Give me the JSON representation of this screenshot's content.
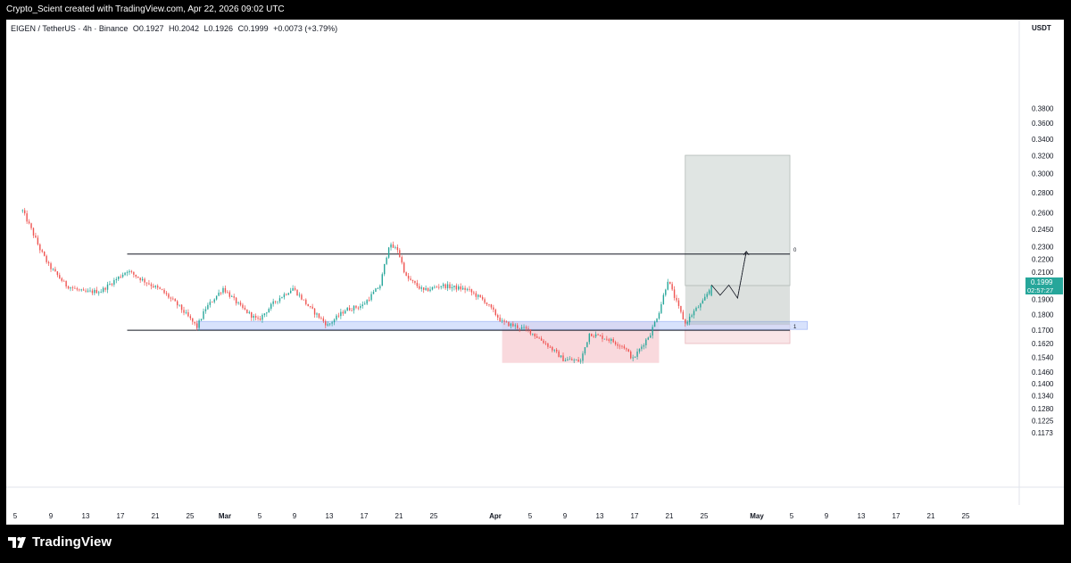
{
  "header": {
    "caption": "Crypto_Scient created with TradingView.com, Apr 22, 2026 09:02 UTC"
  },
  "legend": {
    "symbol": "EIGEN / TetherUS · 4h · Binance",
    "open": "O0.1927",
    "high": "H0.2042",
    "low": "L0.1926",
    "close": "C0.1999",
    "change": "+0.0073 (+3.79%)"
  },
  "price_axis": {
    "currency": "USDT",
    "ticks": [
      "0.3800",
      "0.3600",
      "0.3400",
      "0.3200",
      "0.3000",
      "0.2800",
      "0.2600",
      "0.2450",
      "0.2300",
      "0.2200",
      "0.2100",
      "0.1999",
      "0.1900",
      "0.1800",
      "0.1700",
      "0.1620",
      "0.1540",
      "0.1460",
      "0.1400",
      "0.1340",
      "0.1280",
      "0.1225",
      "0.1173"
    ],
    "ticks_shown": [
      "0.3800",
      "0.3600",
      "0.3400",
      "0.3200",
      "0.3000",
      "0.2800",
      "0.2600",
      "0.2450",
      "0.2300",
      "0.2200",
      "0.2100",
      "0.1900",
      "0.1800",
      "0.1700",
      "0.1620",
      "0.1540",
      "0.1460",
      "0.1400",
      "0.1340",
      "0.1280",
      "0.1225",
      "0.1173"
    ],
    "last_price_label": "0.1999",
    "countdown_label": "02:57:27",
    "last_price_color": "#26a69a"
  },
  "time_axis": {
    "labels": [
      {
        "text": "5",
        "month": false
      },
      {
        "text": "9",
        "month": false
      },
      {
        "text": "13",
        "month": false
      },
      {
        "text": "17",
        "month": false
      },
      {
        "text": "21",
        "month": false
      },
      {
        "text": "25",
        "month": false
      },
      {
        "text": "Mar",
        "month": true
      },
      {
        "text": "5",
        "month": false
      },
      {
        "text": "9",
        "month": false
      },
      {
        "text": "13",
        "month": false
      },
      {
        "text": "17",
        "month": false
      },
      {
        "text": "21",
        "month": false
      },
      {
        "text": "25",
        "month": false
      },
      {
        "text": "Apr",
        "month": true
      },
      {
        "text": "5",
        "month": false
      },
      {
        "text": "9",
        "month": false
      },
      {
        "text": "13",
        "month": false
      },
      {
        "text": "17",
        "month": false
      },
      {
        "text": "21",
        "month": false
      },
      {
        "text": "25",
        "month": false
      },
      {
        "text": "May",
        "month": true
      },
      {
        "text": "5",
        "month": false
      },
      {
        "text": "9",
        "month": false
      },
      {
        "text": "13",
        "month": false
      },
      {
        "text": "17",
        "month": false
      },
      {
        "text": "21",
        "month": false
      },
      {
        "text": "25",
        "month": false
      }
    ]
  },
  "chart_data": {
    "type": "candlestick",
    "symbol": "EIGEN / TetherUS",
    "interval": "4h",
    "exchange": "Binance",
    "y_scale": "log",
    "ylim": [
      0.1173,
      0.39
    ],
    "colors": {
      "up": "#26a69a",
      "down": "#ef5350"
    },
    "price_path": [
      [
        "2026-02-02",
        0.262
      ],
      [
        "2026-02-03",
        0.245
      ],
      [
        "2026-02-04",
        0.228
      ],
      [
        "2026-02-05",
        0.215
      ],
      [
        "2026-02-07",
        0.2
      ],
      [
        "2026-02-09",
        0.195
      ],
      [
        "2026-02-11",
        0.196
      ],
      [
        "2026-02-14",
        0.211
      ],
      [
        "2026-02-16",
        0.203
      ],
      [
        "2026-02-18",
        0.196
      ],
      [
        "2026-02-20",
        0.185
      ],
      [
        "2026-02-22",
        0.172
      ],
      [
        "2026-02-23",
        0.184
      ],
      [
        "2026-02-25",
        0.198
      ],
      [
        "2026-02-27",
        0.185
      ],
      [
        "2026-03-01",
        0.176
      ],
      [
        "2026-03-03",
        0.189
      ],
      [
        "2026-03-05",
        0.198
      ],
      [
        "2026-03-07",
        0.184
      ],
      [
        "2026-03-09",
        0.173
      ],
      [
        "2026-03-11",
        0.183
      ],
      [
        "2026-03-13",
        0.186
      ],
      [
        "2026-03-15",
        0.2
      ],
      [
        "2026-03-16",
        0.231
      ],
      [
        "2026-03-17",
        0.228
      ],
      [
        "2026-03-18",
        0.206
      ],
      [
        "2026-03-20",
        0.196
      ],
      [
        "2026-03-22",
        0.2
      ],
      [
        "2026-03-25",
        0.197
      ],
      [
        "2026-03-27",
        0.189
      ],
      [
        "2026-03-29",
        0.175
      ],
      [
        "2026-04-01",
        0.17
      ],
      [
        "2026-04-03",
        0.162
      ],
      [
        "2026-04-05",
        0.153
      ],
      [
        "2026-04-07",
        0.152
      ],
      [
        "2026-04-08",
        0.168
      ],
      [
        "2026-04-10",
        0.165
      ],
      [
        "2026-04-12",
        0.16
      ],
      [
        "2026-04-13",
        0.153
      ],
      [
        "2026-04-15",
        0.168
      ],
      [
        "2026-04-16",
        0.182
      ],
      [
        "2026-04-17",
        0.204
      ],
      [
        "2026-04-18",
        0.188
      ],
      [
        "2026-04-19",
        0.174
      ],
      [
        "2026-04-20",
        0.182
      ],
      [
        "2026-04-21",
        0.188
      ],
      [
        "2026-04-22",
        0.1999
      ]
    ],
    "last_candle": {
      "open": 0.1927,
      "high": 0.2042,
      "low": 0.1926,
      "close": 0.1999,
      "change": 0.0073,
      "change_pct": 3.79
    },
    "drawings": {
      "range_top": {
        "price": 0.224,
        "from": "2026-02-14",
        "to": "2026-05-01"
      },
      "range_bottom": {
        "price": 0.17,
        "from": "2026-02-14",
        "to": "2026-05-01"
      },
      "support_zone": {
        "from_price": 0.1705,
        "to_price": 0.1755,
        "from": "2026-02-22",
        "to": "2026-05-03",
        "color": "#c9d7fb"
      },
      "demand_zone": {
        "from_price": 0.151,
        "to_price": 0.1755,
        "from": "2026-03-29",
        "to": "2026-04-16",
        "color": "#f8d0d4"
      },
      "position_target": {
        "from_price": 0.1999,
        "to_price": 0.3205,
        "from": "2026-04-19",
        "to": "2026-05-01",
        "color": "#d5dcd9"
      },
      "position_stop": {
        "from_price": 0.162,
        "to_price": 0.1735,
        "from": "2026-04-19",
        "to": "2026-05-01"
      },
      "fib_label_top": "0",
      "fib_label_bottom": "1",
      "projection_path": [
        [
          "2026-04-22",
          0.2004
        ],
        [
          "2026-04-23",
          0.193
        ],
        [
          "2026-04-24",
          0.2002
        ],
        [
          "2026-04-25",
          0.191
        ],
        [
          "2026-04-26",
          0.2262
        ]
      ]
    }
  },
  "branding": {
    "logo_text": "TradingView"
  }
}
